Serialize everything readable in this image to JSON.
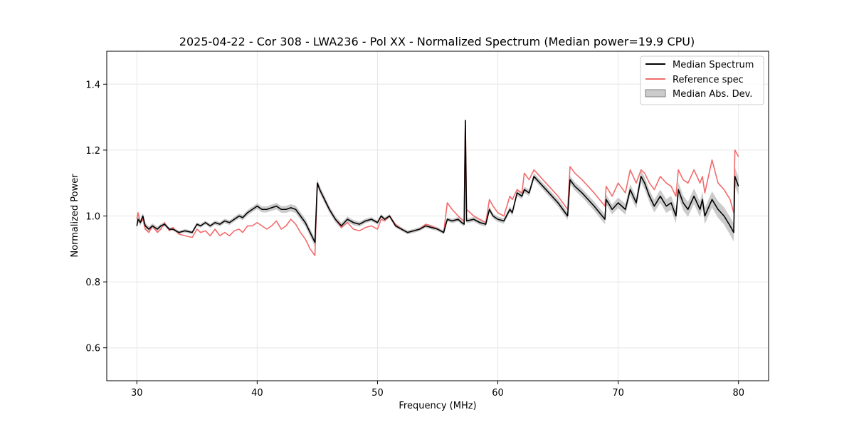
{
  "chart_data": {
    "type": "line",
    "title": "2025-04-22 - Cor 308 - LWA236 - Pol XX - Normalized Spectrum (Median power=19.9 CPU)",
    "xlabel": "Frequency (MHz)",
    "ylabel": "Normalized Power",
    "xlim": [
      27.5,
      82.5
    ],
    "ylim": [
      0.5,
      1.5
    ],
    "xticks": [
      30,
      40,
      50,
      60,
      70,
      80
    ],
    "yticks": [
      0.6,
      0.8,
      1.0,
      1.2,
      1.4
    ],
    "xtick_labels": [
      "30",
      "40",
      "50",
      "60",
      "70",
      "80"
    ],
    "ytick_labels": [
      "0.6",
      "0.8",
      "1.0",
      "1.2",
      "1.4"
    ],
    "grid": true,
    "legend_position": "top-right",
    "colors": {
      "median": "#000000",
      "reference": "#f26b6b",
      "mad": "#a0a0a0"
    },
    "series": [
      {
        "name": "Median Spectrum",
        "x": [
          30.0,
          30.1,
          30.3,
          30.5,
          30.7,
          31.0,
          31.3,
          31.7,
          32.0,
          32.3,
          32.7,
          33.0,
          33.5,
          34.0,
          34.6,
          35.0,
          35.3,
          35.7,
          36.1,
          36.5,
          36.9,
          37.3,
          37.7,
          38.1,
          38.5,
          38.8,
          39.2,
          39.6,
          40.0,
          40.4,
          40.8,
          41.2,
          41.6,
          42.0,
          42.4,
          42.8,
          43.2,
          43.6,
          44.0,
          44.4,
          44.8,
          45.0,
          45.2,
          45.6,
          46.0,
          46.5,
          47.0,
          47.5,
          48.0,
          48.5,
          49.0,
          49.5,
          50.0,
          50.3,
          50.6,
          51.0,
          51.5,
          52.0,
          52.5,
          53.0,
          53.5,
          54.0,
          54.5,
          55.0,
          55.5,
          55.8,
          56.2,
          56.7,
          57.0,
          57.2,
          57.3,
          57.4,
          58.0,
          58.5,
          59.0,
          59.3,
          59.6,
          60.0,
          60.5,
          61.0,
          61.2,
          61.6,
          62.0,
          62.2,
          62.6,
          63.0,
          64.0,
          65.0,
          65.8,
          66.0,
          66.4,
          67.0,
          68.0,
          68.9,
          69.0,
          69.5,
          70.0,
          70.6,
          71.0,
          71.5,
          71.9,
          72.2,
          72.6,
          73.0,
          73.5,
          74.0,
          74.4,
          74.8,
          75.0,
          75.4,
          75.8,
          76.3,
          76.8,
          77.0,
          77.2,
          77.8,
          78.3,
          78.8,
          79.3,
          79.6,
          79.7,
          80.0
        ],
        "y": [
          0.97,
          0.99,
          0.98,
          1.0,
          0.97,
          0.96,
          0.97,
          0.96,
          0.97,
          0.975,
          0.96,
          0.96,
          0.95,
          0.955,
          0.95,
          0.975,
          0.97,
          0.98,
          0.97,
          0.98,
          0.975,
          0.985,
          0.98,
          0.99,
          1.0,
          0.995,
          1.01,
          1.02,
          1.03,
          1.02,
          1.02,
          1.025,
          1.03,
          1.02,
          1.02,
          1.025,
          1.02,
          1.0,
          0.98,
          0.95,
          0.92,
          1.1,
          1.08,
          1.05,
          1.02,
          0.99,
          0.97,
          0.99,
          0.98,
          0.975,
          0.985,
          0.99,
          0.98,
          1.0,
          0.99,
          1.0,
          0.97,
          0.96,
          0.95,
          0.955,
          0.96,
          0.97,
          0.965,
          0.96,
          0.95,
          0.99,
          0.985,
          0.99,
          0.98,
          0.975,
          1.29,
          0.985,
          0.99,
          0.98,
          0.975,
          1.02,
          1.0,
          0.99,
          0.985,
          1.02,
          1.01,
          1.07,
          1.06,
          1.08,
          1.07,
          1.12,
          1.08,
          1.04,
          1.0,
          1.11,
          1.09,
          1.07,
          1.03,
          0.99,
          1.05,
          1.02,
          1.04,
          1.02,
          1.08,
          1.04,
          1.12,
          1.1,
          1.06,
          1.03,
          1.06,
          1.03,
          1.04,
          1.0,
          1.08,
          1.04,
          1.02,
          1.06,
          1.02,
          1.05,
          1.0,
          1.05,
          1.02,
          1.0,
          0.97,
          0.95,
          1.12,
          1.09
        ]
      },
      {
        "name": "Reference spec",
        "x": [
          30.0,
          30.1,
          30.3,
          30.5,
          30.7,
          31.0,
          31.3,
          31.7,
          32.0,
          32.3,
          32.7,
          33.0,
          33.5,
          34.0,
          34.6,
          35.0,
          35.3,
          35.7,
          36.1,
          36.5,
          36.9,
          37.3,
          37.7,
          38.1,
          38.5,
          38.8,
          39.2,
          39.6,
          40.0,
          40.4,
          40.8,
          41.2,
          41.6,
          42.0,
          42.4,
          42.8,
          43.2,
          43.6,
          44.0,
          44.4,
          44.8,
          45.0,
          45.2,
          45.6,
          46.0,
          46.5,
          47.0,
          47.5,
          48.0,
          48.5,
          49.0,
          49.5,
          50.0,
          50.3,
          50.6,
          51.0,
          51.5,
          52.0,
          52.5,
          53.0,
          53.5,
          54.0,
          54.5,
          55.0,
          55.5,
          55.8,
          56.2,
          56.7,
          57.0,
          57.2,
          57.3,
          57.4,
          58.0,
          58.5,
          59.0,
          59.3,
          59.6,
          60.0,
          60.5,
          61.0,
          61.2,
          61.6,
          62.0,
          62.2,
          62.6,
          63.0,
          64.0,
          65.0,
          65.8,
          66.0,
          66.4,
          67.0,
          68.0,
          68.9,
          69.0,
          69.5,
          70.0,
          70.6,
          71.0,
          71.5,
          71.9,
          72.2,
          72.6,
          73.0,
          73.5,
          74.0,
          74.4,
          74.8,
          75.0,
          75.4,
          75.8,
          76.3,
          76.8,
          77.0,
          77.2,
          77.8,
          78.3,
          78.8,
          79.3,
          79.6,
          79.7,
          80.0
        ],
        "y": [
          0.99,
          1.01,
          0.98,
          0.99,
          0.96,
          0.95,
          0.97,
          0.95,
          0.96,
          0.98,
          0.955,
          0.965,
          0.945,
          0.94,
          0.935,
          0.96,
          0.95,
          0.955,
          0.94,
          0.96,
          0.94,
          0.95,
          0.94,
          0.955,
          0.96,
          0.95,
          0.97,
          0.97,
          0.98,
          0.97,
          0.96,
          0.97,
          0.985,
          0.96,
          0.97,
          0.99,
          0.975,
          0.95,
          0.93,
          0.9,
          0.88,
          1.1,
          1.08,
          1.05,
          1.02,
          0.99,
          0.965,
          0.98,
          0.96,
          0.955,
          0.965,
          0.97,
          0.96,
          0.99,
          0.985,
          1.0,
          0.975,
          0.96,
          0.95,
          0.955,
          0.96,
          0.975,
          0.97,
          0.96,
          0.95,
          1.04,
          1.02,
          1.0,
          0.99,
          0.985,
          1.29,
          1.02,
          1.0,
          0.99,
          0.98,
          1.05,
          1.03,
          1.01,
          1.0,
          1.06,
          1.05,
          1.08,
          1.07,
          1.13,
          1.11,
          1.14,
          1.1,
          1.06,
          1.02,
          1.15,
          1.13,
          1.11,
          1.07,
          1.03,
          1.09,
          1.06,
          1.1,
          1.07,
          1.14,
          1.1,
          1.14,
          1.13,
          1.1,
          1.08,
          1.12,
          1.1,
          1.09,
          1.06,
          1.14,
          1.11,
          1.1,
          1.14,
          1.1,
          1.12,
          1.07,
          1.17,
          1.1,
          1.08,
          1.05,
          1.01,
          1.2,
          1.18
        ]
      }
    ],
    "mad_band": {
      "name": "Median Abs. Dev.",
      "x": [
        30.0,
        33.0,
        36.0,
        39.0,
        42.0,
        44.0,
        45.0,
        46.0,
        50.0,
        55.0,
        60.0,
        63.0,
        66.0,
        69.0,
        72.0,
        75.0,
        78.0,
        80.0
      ],
      "halfwidth": [
        0.01,
        0.005,
        0.006,
        0.008,
        0.01,
        0.012,
        0.012,
        0.01,
        0.006,
        0.006,
        0.008,
        0.01,
        0.012,
        0.015,
        0.018,
        0.022,
        0.025,
        0.028
      ]
    },
    "legend": [
      "Median Spectrum",
      "Reference spec",
      "Median Abs. Dev."
    ]
  }
}
